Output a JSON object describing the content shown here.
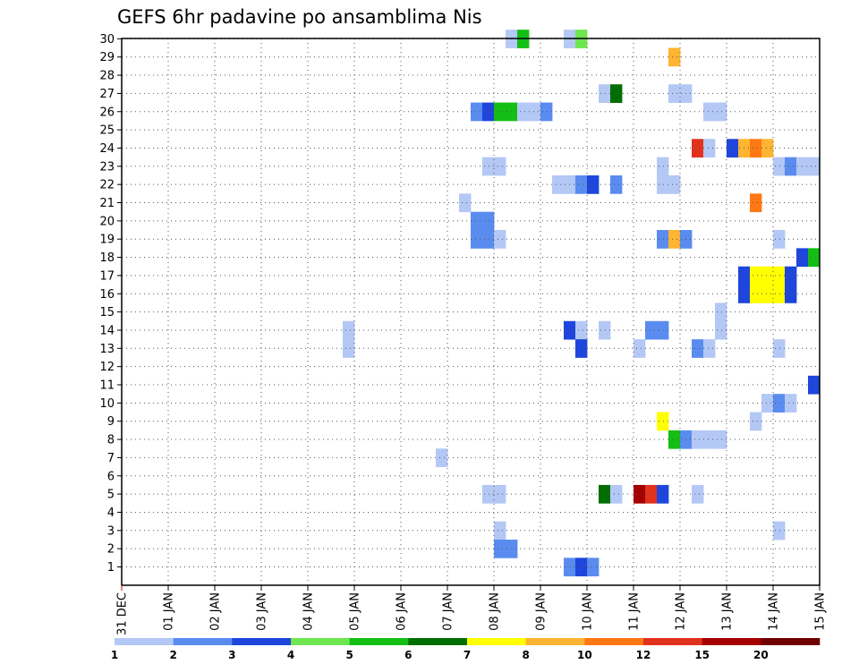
{
  "chart_data": {
    "type": "heatmap",
    "title": "GEFS 6hr padavine po ansamblima Nis",
    "xlabel": "",
    "ylabel": "",
    "x_tick_labels": [
      "31 DEC",
      "01 JAN",
      "02 JAN",
      "03 JAN",
      "04 JAN",
      "05 JAN",
      "06 JAN",
      "07 JAN",
      "08 JAN",
      "09 JAN",
      "10 JAN",
      "11 JAN",
      "12 JAN",
      "13 JAN",
      "14 JAN",
      "15 JAN"
    ],
    "x_range_days": [
      0,
      15
    ],
    "time_step_hours": 6,
    "y_tick_labels": [
      "1",
      "2",
      "3",
      "4",
      "5",
      "6",
      "7",
      "8",
      "9",
      "10",
      "11",
      "12",
      "13",
      "14",
      "15",
      "16",
      "17",
      "18",
      "19",
      "20",
      "21",
      "22",
      "23",
      "24",
      "25",
      "26",
      "27",
      "28",
      "29",
      "30"
    ],
    "ylim": [
      1,
      30
    ],
    "grid": true,
    "colorbar": {
      "labels": [
        "1",
        "2",
        "3",
        "4",
        "5",
        "6",
        "7",
        "8",
        "10",
        "12",
        "15",
        "20"
      ],
      "colors": [
        "#b4c8f5",
        "#5a8cf0",
        "#1e46dc",
        "#6ee650",
        "#14be14",
        "#006e00",
        "#ffff00",
        "#ffb432",
        "#ff7814",
        "#e1321e",
        "#a50000",
        "#6e0000"
      ]
    },
    "cells": [
      {
        "member": 30,
        "day": 8.25,
        "bin": 0
      },
      {
        "member": 30,
        "day": 8.5,
        "bin": 4
      },
      {
        "member": 30,
        "day": 9.5,
        "bin": 0
      },
      {
        "member": 30,
        "day": 9.75,
        "bin": 3
      },
      {
        "member": 29,
        "day": 11.75,
        "bin": 7
      },
      {
        "member": 27,
        "day": 10.25,
        "bin": 0
      },
      {
        "member": 27,
        "day": 10.5,
        "bin": 5
      },
      {
        "member": 27,
        "day": 11.75,
        "bin": 0
      },
      {
        "member": 27,
        "day": 12,
        "bin": 0
      },
      {
        "member": 26,
        "day": 7.5,
        "bin": 1
      },
      {
        "member": 26,
        "day": 7.75,
        "bin": 2
      },
      {
        "member": 26,
        "day": 8,
        "bin": 4
      },
      {
        "member": 26,
        "day": 8.25,
        "bin": 4
      },
      {
        "member": 26,
        "day": 8.5,
        "bin": 0
      },
      {
        "member": 26,
        "day": 8.75,
        "bin": 0
      },
      {
        "member": 26,
        "day": 9,
        "bin": 1
      },
      {
        "member": 26,
        "day": 12.5,
        "bin": 0
      },
      {
        "member": 26,
        "day": 12.75,
        "bin": 0
      },
      {
        "member": 24,
        "day": 12.25,
        "bin": 9
      },
      {
        "member": 24,
        "day": 12.5,
        "bin": 0
      },
      {
        "member": 24,
        "day": 13,
        "bin": 2
      },
      {
        "member": 24,
        "day": 13.25,
        "bin": 7
      },
      {
        "member": 24,
        "day": 13.5,
        "bin": 8
      },
      {
        "member": 24,
        "day": 13.75,
        "bin": 7
      },
      {
        "member": 23,
        "day": 7.75,
        "bin": 0
      },
      {
        "member": 23,
        "day": 8,
        "bin": 0
      },
      {
        "member": 23,
        "day": 11.5,
        "bin": 0
      },
      {
        "member": 23,
        "day": 14,
        "bin": 0
      },
      {
        "member": 23,
        "day": 14.25,
        "bin": 1
      },
      {
        "member": 23,
        "day": 14.5,
        "bin": 0
      },
      {
        "member": 23,
        "day": 14.75,
        "bin": 0
      },
      {
        "member": 22,
        "day": 9.25,
        "bin": 0
      },
      {
        "member": 22,
        "day": 9.5,
        "bin": 0
      },
      {
        "member": 22,
        "day": 9.75,
        "bin": 1
      },
      {
        "member": 22,
        "day": 10,
        "bin": 2
      },
      {
        "member": 22,
        "day": 10.5,
        "bin": 1
      },
      {
        "member": 22,
        "day": 11.5,
        "bin": 0
      },
      {
        "member": 22,
        "day": 11.75,
        "bin": 0
      },
      {
        "member": 21,
        "day": 7.25,
        "bin": 0
      },
      {
        "member": 21,
        "day": 13.5,
        "bin": 8
      },
      {
        "member": 20,
        "day": 7.5,
        "bin": 1
      },
      {
        "member": 20,
        "day": 7.75,
        "bin": 1
      },
      {
        "member": 19,
        "day": 7.5,
        "bin": 1
      },
      {
        "member": 19,
        "day": 7.75,
        "bin": 1
      },
      {
        "member": 19,
        "day": 8,
        "bin": 0
      },
      {
        "member": 19,
        "day": 11.5,
        "bin": 1
      },
      {
        "member": 19,
        "day": 11.75,
        "bin": 7
      },
      {
        "member": 19,
        "day": 12,
        "bin": 1
      },
      {
        "member": 19,
        "day": 14,
        "bin": 0
      },
      {
        "member": 18,
        "day": 14.5,
        "bin": 2
      },
      {
        "member": 18,
        "day": 14.75,
        "bin": 4
      },
      {
        "member": 17,
        "day": 13.25,
        "bin": 2
      },
      {
        "member": 17,
        "day": 13.5,
        "bin": 6
      },
      {
        "member": 17,
        "day": 13.75,
        "bin": 6
      },
      {
        "member": 17,
        "day": 14,
        "bin": 6
      },
      {
        "member": 17,
        "day": 14.25,
        "bin": 2
      },
      {
        "member": 16,
        "day": 13.25,
        "bin": 2
      },
      {
        "member": 16,
        "day": 13.5,
        "bin": 6
      },
      {
        "member": 16,
        "day": 13.75,
        "bin": 6
      },
      {
        "member": 16,
        "day": 14,
        "bin": 6
      },
      {
        "member": 16,
        "day": 14.25,
        "bin": 2
      },
      {
        "member": 15,
        "day": 12.75,
        "bin": 0
      },
      {
        "member": 14,
        "day": 4.75,
        "bin": 0
      },
      {
        "member": 14,
        "day": 9.5,
        "bin": 2
      },
      {
        "member": 14,
        "day": 9.75,
        "bin": 0
      },
      {
        "member": 14,
        "day": 10.25,
        "bin": 0
      },
      {
        "member": 14,
        "day": 11.25,
        "bin": 1
      },
      {
        "member": 14,
        "day": 11.5,
        "bin": 1
      },
      {
        "member": 14,
        "day": 12.75,
        "bin": 0
      },
      {
        "member": 13,
        "day": 4.75,
        "bin": 0
      },
      {
        "member": 13,
        "day": 9.75,
        "bin": 2
      },
      {
        "member": 13,
        "day": 11,
        "bin": 0
      },
      {
        "member": 13,
        "day": 12.25,
        "bin": 1
      },
      {
        "member": 13,
        "day": 12.5,
        "bin": 0
      },
      {
        "member": 13,
        "day": 14,
        "bin": 0
      },
      {
        "member": 11,
        "day": 14.75,
        "bin": 2
      },
      {
        "member": 10,
        "day": 13.75,
        "bin": 0
      },
      {
        "member": 10,
        "day": 14,
        "bin": 1
      },
      {
        "member": 10,
        "day": 14.25,
        "bin": 0
      },
      {
        "member": 9,
        "day": 11.5,
        "bin": 6
      },
      {
        "member": 9,
        "day": 13.5,
        "bin": 0
      },
      {
        "member": 8,
        "day": 11.75,
        "bin": 4
      },
      {
        "member": 8,
        "day": 12,
        "bin": 1
      },
      {
        "member": 8,
        "day": 12.25,
        "bin": 0
      },
      {
        "member": 8,
        "day": 12.5,
        "bin": 0
      },
      {
        "member": 8,
        "day": 12.75,
        "bin": 0
      },
      {
        "member": 7,
        "day": 6.75,
        "bin": 0
      },
      {
        "member": 5,
        "day": 7.75,
        "bin": 0
      },
      {
        "member": 5,
        "day": 8,
        "bin": 0
      },
      {
        "member": 5,
        "day": 10.25,
        "bin": 5
      },
      {
        "member": 5,
        "day": 10.5,
        "bin": 0
      },
      {
        "member": 5,
        "day": 11,
        "bin": 10
      },
      {
        "member": 5,
        "day": 11.25,
        "bin": 9
      },
      {
        "member": 5,
        "day": 11.5,
        "bin": 2
      },
      {
        "member": 5,
        "day": 12.25,
        "bin": 0
      },
      {
        "member": 3,
        "day": 8,
        "bin": 0
      },
      {
        "member": 3,
        "day": 14,
        "bin": 0
      },
      {
        "member": 2,
        "day": 8,
        "bin": 1
      },
      {
        "member": 2,
        "day": 8.25,
        "bin": 1
      },
      {
        "member": 1,
        "day": 9.5,
        "bin": 1
      },
      {
        "member": 1,
        "day": 9.75,
        "bin": 2
      },
      {
        "member": 1,
        "day": 10,
        "bin": 1
      }
    ]
  }
}
